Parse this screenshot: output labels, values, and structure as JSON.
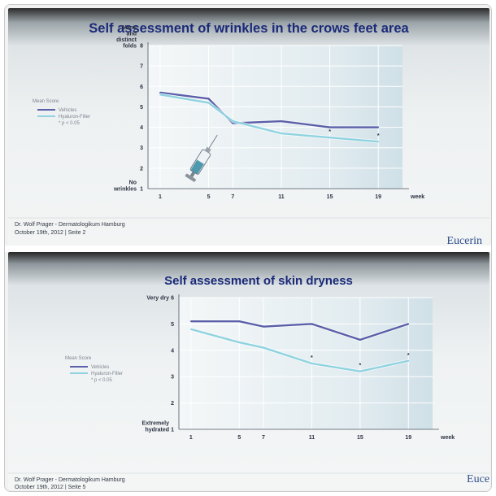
{
  "slides": [
    {
      "title": "Self assessment of wrinkles in the crows feet area",
      "footer_author": "Dr. Wolf Prager - Dermatologikum Hamburg",
      "footer_date": "October 19th, 2012  | Seite 2",
      "brand": "Eucerin"
    },
    {
      "title": "Self assessment of skin dryness",
      "footer_author": "Dr. Wolf Prager - Dermatologikum Hamburg",
      "footer_date": "October 19th, 2012  | Seite 5",
      "brand": "Euce"
    }
  ],
  "chart_data": [
    {
      "type": "line",
      "title": "Self assessment of wrinkles in the crows feet area",
      "x": [
        1,
        5,
        7,
        11,
        15,
        19
      ],
      "xlabel": "week",
      "xlim": [
        0,
        21
      ],
      "ylim": [
        1,
        8
      ],
      "yticks": [
        1,
        2,
        3,
        4,
        5,
        6,
        7,
        8
      ],
      "y_top_label_lines": [
        "Many",
        "and",
        "distinct",
        "folds"
      ],
      "y_bottom_label_lines": [
        "No",
        "wrinkles"
      ],
      "legend_title": "Mean Score",
      "legend_entries": [
        "Vehicles",
        "Hyaluron-Filler",
        "* p < 0.05"
      ],
      "legend_position": "left",
      "grid": true,
      "series": [
        {
          "name": "Vehicles",
          "color": "#5a5fa8",
          "values": [
            5.7,
            5.4,
            4.2,
            4.3,
            4.0,
            4.0
          ]
        },
        {
          "name": "Hyaluron-Filler",
          "color": "#8fd3e0",
          "values": [
            5.6,
            5.2,
            4.3,
            3.7,
            3.5,
            3.3
          ]
        }
      ],
      "significance_marker": "*",
      "significance_x": [
        15,
        19
      ],
      "annotation_icon": "syringe-icon"
    },
    {
      "type": "line",
      "title": "Self assessment of skin dryness",
      "x": [
        1,
        5,
        7,
        11,
        15,
        19
      ],
      "xlabel": "week",
      "xlim": [
        0,
        21
      ],
      "ylim": [
        1,
        6
      ],
      "yticks": [
        1,
        2,
        3,
        4,
        5,
        6
      ],
      "y_top_label_lines": [
        "Very dry"
      ],
      "y_bottom_label_lines": [
        "Extremely",
        "hydrated"
      ],
      "legend_title": "Mean Score",
      "legend_entries": [
        "Vehicles",
        "Hyaluron-Filler",
        "* p < 0.05"
      ],
      "legend_position": "left",
      "grid": true,
      "series": [
        {
          "name": "Vehicles",
          "color": "#5a5fa8",
          "values": [
            5.1,
            5.1,
            4.9,
            5.0,
            4.4,
            5.0
          ]
        },
        {
          "name": "Hyaluron-Filler",
          "color": "#8fd3e0",
          "values": [
            4.8,
            4.3,
            4.1,
            3.5,
            3.2,
            3.6
          ]
        }
      ],
      "significance_marker": "*",
      "significance_x": [
        11,
        15,
        19
      ]
    }
  ]
}
